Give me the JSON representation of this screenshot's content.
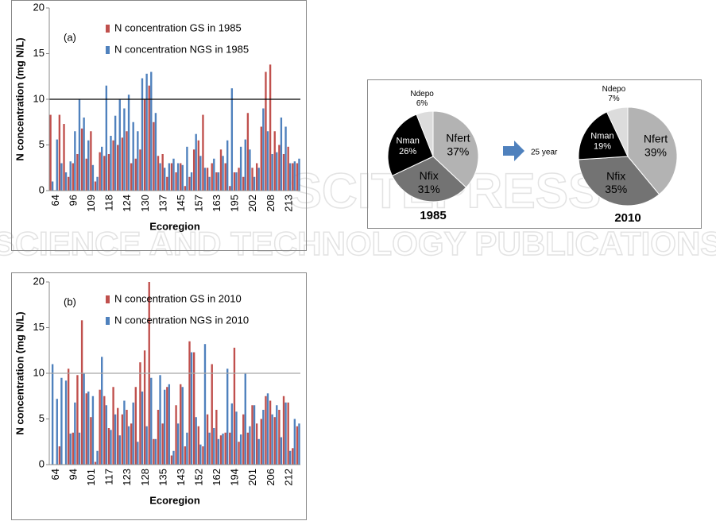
{
  "watermark": [
    "SCITEPRESS",
    "SCIENCE AND TECHNOLOGY PUBLICATIONS"
  ],
  "arrow_label": "25 year",
  "chart_data": [
    {
      "type": "bar",
      "annotation": "(a)",
      "ylabel": "N concentration (mg N/L)",
      "xlabel": "Ecoregion",
      "categories": [
        null,
        "64",
        null,
        null,
        null,
        "96",
        null,
        null,
        null,
        "109",
        null,
        null,
        null,
        "118",
        null,
        null,
        null,
        "124",
        null,
        null,
        null,
        "130",
        null,
        null,
        null,
        "137",
        null,
        null,
        null,
        "145",
        null,
        null,
        null,
        "157",
        null,
        null,
        null,
        "163",
        null,
        null,
        null,
        "195",
        null,
        null,
        null,
        "202",
        null,
        null,
        null,
        "208",
        null,
        null,
        null,
        "213",
        null,
        null
      ],
      "series": [
        {
          "name": "N concentration GS in 1985",
          "color": "#c0504d",
          "values": [
            8.3,
            0,
            8.3,
            7.3,
            1.5,
            3.0,
            4.0,
            6.8,
            3.5,
            6.5,
            1.0,
            4.2,
            3.8,
            4.0,
            5.5,
            5.0,
            5.8,
            6.5,
            3.0,
            3.5,
            4.5,
            10.0,
            11.5,
            7.5,
            3.8,
            4.0,
            1.5,
            3.0,
            2.0,
            3.0,
            0.5,
            1.5,
            4.5,
            5.5,
            8.3,
            2.5,
            3.0,
            2.0,
            4.5,
            3.0,
            0.5,
            2.0,
            2.5,
            1.5,
            8.5,
            2.5,
            3.0,
            7.0,
            13.0,
            13.8,
            6.5,
            5.0,
            4.0,
            4.8,
            3.0,
            3.0
          ]
        },
        {
          "name": "N concentration NGS in 1985",
          "color": "#4f81bd",
          "values": [
            1.0,
            5.6,
            3.0,
            2.0,
            3.2,
            6.5,
            10.0,
            8.0,
            5.5,
            2.8,
            1.5,
            4.8,
            11.5,
            6.0,
            8.2,
            10.0,
            9.0,
            10.5,
            7.5,
            6.5,
            12.3,
            12.8,
            13.0,
            8.5,
            3.0,
            2.5,
            3.0,
            3.5,
            3.0,
            2.8,
            4.8,
            2.0,
            6.2,
            3.8,
            2.5,
            1.5,
            3.5,
            2.0,
            3.8,
            5.5,
            11.2,
            2.0,
            4.8,
            5.6,
            4.5,
            1.5,
            2.5,
            9.0,
            6.5,
            4.0,
            4.2,
            8.0,
            7.0,
            3.0,
            3.2,
            3.5
          ]
        }
      ],
      "ylim": [
        0,
        20
      ],
      "yticks": [
        0,
        5,
        10,
        15,
        20
      ],
      "reference_line": {
        "value": 10,
        "color": "#000000"
      }
    },
    {
      "type": "bar",
      "annotation": "(b)",
      "ylabel": "N concentration (mg N/L)",
      "xlabel": "Ecoregion",
      "categories": [
        null,
        "64",
        null,
        null,
        null,
        "94",
        null,
        null,
        null,
        "101",
        null,
        null,
        null,
        "117",
        null,
        null,
        null,
        "123",
        null,
        null,
        null,
        "128",
        null,
        null,
        null,
        "135",
        null,
        null,
        null,
        "143",
        null,
        null,
        null,
        "152",
        null,
        null,
        null,
        "162",
        null,
        null,
        null,
        "194",
        null,
        null,
        null,
        "201",
        null,
        null,
        null,
        "206",
        null,
        null,
        null,
        "212",
        null,
        null
      ],
      "series": [
        {
          "name": "N concentration GS in 2010",
          "color": "#c0504d",
          "values": [
            0,
            0,
            2.0,
            0,
            10.5,
            3.5,
            9.8,
            15.8,
            7.8,
            5.2,
            0.3,
            8.2,
            7.5,
            4.0,
            8.5,
            6.2,
            5.5,
            6.0,
            4.5,
            8.5,
            11.2,
            12.5,
            20.0,
            2.8,
            6.0,
            4.5,
            8.5,
            1.0,
            6.5,
            8.8,
            2.0,
            13.5,
            12.3,
            4.2,
            2.0,
            5.5,
            11.0,
            6.0,
            3.2,
            3.5,
            3.5,
            12.8,
            2.5,
            5.5,
            3.5,
            6.5,
            4.5,
            5.0,
            7.5,
            7.0,
            5.2,
            6.0,
            7.5,
            6.8,
            1.8,
            4.2
          ]
        },
        {
          "name": "N concentration NGS in 2010",
          "color": "#4f81bd",
          "values": [
            11.0,
            7.2,
            9.5,
            9.2,
            3.4,
            6.8,
            3.5,
            10.0,
            8.0,
            7.5,
            1.5,
            11.8,
            6.5,
            3.8,
            5.5,
            3.2,
            7.0,
            4.2,
            6.8,
            2.5,
            8.0,
            4.2,
            9.5,
            2.8,
            9.8,
            8.2,
            8.8,
            1.5,
            4.5,
            8.5,
            3.5,
            12.3,
            5.2,
            2.2,
            13.2,
            3.5,
            4.0,
            2.8,
            3.4,
            10.5,
            6.7,
            5.8,
            3.3,
            10.0,
            4.2,
            6.5,
            2.8,
            6.0,
            7.8,
            5.5,
            6.5,
            3.0,
            6.8,
            1.5,
            5.0,
            4.5
          ]
        }
      ],
      "ylim": [
        0,
        20
      ],
      "yticks": [
        0,
        5,
        10,
        15,
        20
      ],
      "reference_line": {
        "value": 10,
        "color": "#a6a6a6"
      }
    },
    {
      "type": "pie",
      "title": "1985",
      "categories": [
        "Nfert",
        "Nfix",
        "Nman",
        "Ndepo"
      ],
      "values": [
        37,
        31,
        26,
        6
      ],
      "value_labels": [
        "37%",
        "31%",
        "26%",
        "6%"
      ],
      "colors": [
        "#b3b3b3",
        "#737373",
        "#000000",
        "#dcdcdc"
      ]
    },
    {
      "type": "pie",
      "title": "2010",
      "categories": [
        "Nfert",
        "Nfix",
        "Nman",
        "Ndepo"
      ],
      "values": [
        39,
        35,
        19,
        7
      ],
      "value_labels": [
        "39%",
        "35%",
        "19%",
        "7%"
      ],
      "colors": [
        "#b3b3b3",
        "#737373",
        "#000000",
        "#dcdcdc"
      ]
    }
  ]
}
